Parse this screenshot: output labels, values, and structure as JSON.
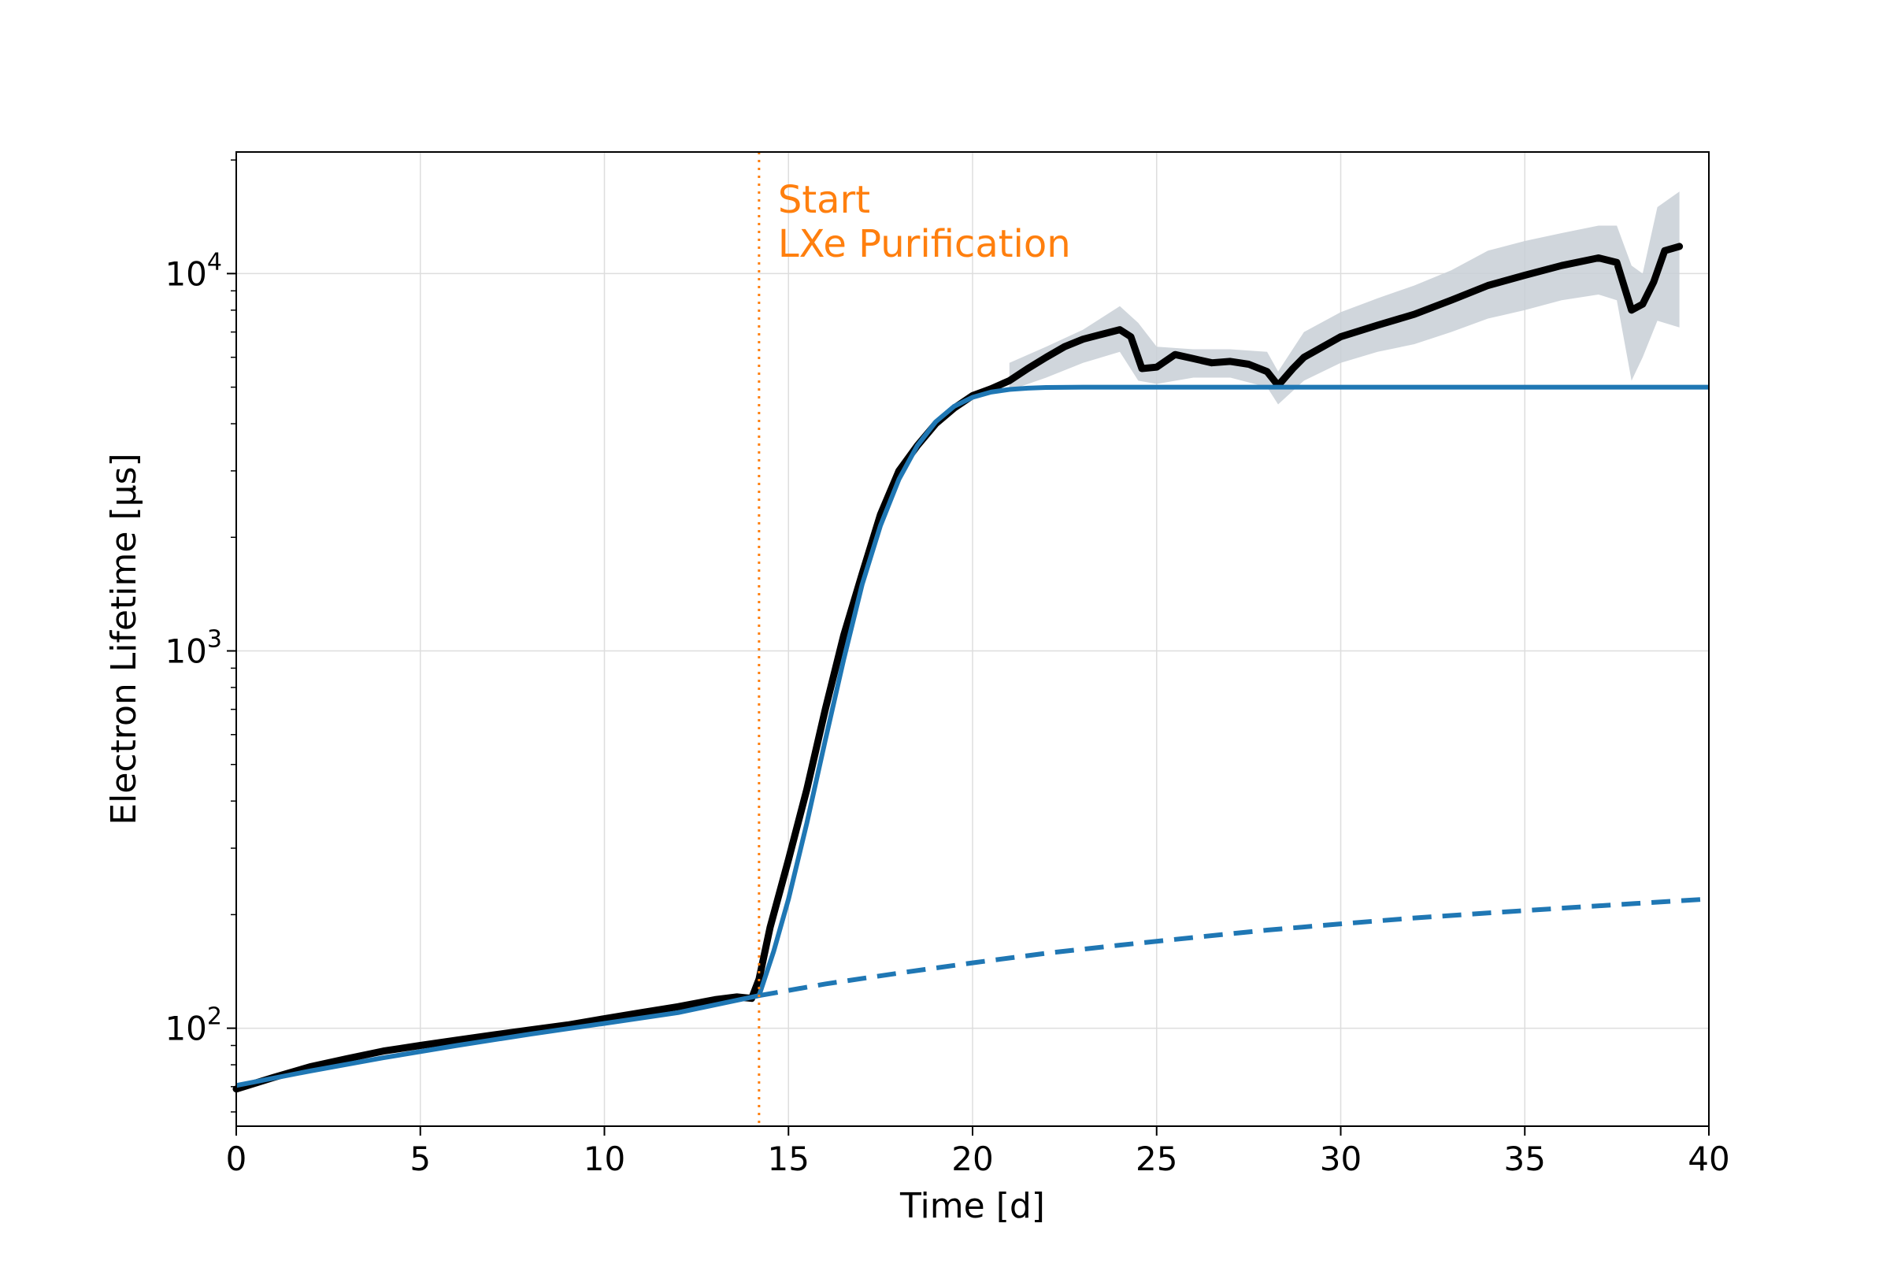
{
  "chart_data": {
    "type": "line",
    "title": "",
    "xlabel": "Time [d]",
    "ylabel": "Electron Lifetime [μs]",
    "yscale": "log",
    "xlim": [
      0,
      40
    ],
    "ylim": [
      55,
      21000
    ],
    "x_ticks": [
      0,
      5,
      10,
      15,
      20,
      25,
      30,
      35,
      40
    ],
    "y_ticks": [
      {
        "value": 100,
        "base": "10",
        "exp": "2"
      },
      {
        "value": 1000,
        "base": "10",
        "exp": "3"
      },
      {
        "value": 10000,
        "base": "10",
        "exp": "4"
      }
    ],
    "grid": true,
    "legend": "none",
    "colors": {
      "data": "#000000",
      "uncertainty_band": "#c8cfd6",
      "fit": "#1f77b4",
      "annotation": "#ff7f0e",
      "grid": "#dddddd"
    },
    "annotation": {
      "x": 14.2,
      "line1": "Start",
      "line2": "LXe Purification"
    },
    "series": [
      {
        "style": "points",
        "x": [
          0,
          1,
          2,
          3,
          4,
          5,
          6,
          7,
          8,
          9,
          10,
          11,
          12,
          13,
          13.6,
          14.0,
          14.2,
          14.5,
          15,
          15.5,
          16,
          16.5,
          17,
          17.5,
          18,
          18.5,
          19,
          19.5,
          20,
          20.5,
          21,
          21.5,
          22,
          22.5,
          23,
          23.5,
          24,
          24.3,
          24.6,
          25,
          25.5,
          26,
          26.5,
          27,
          27.5,
          28,
          28.3,
          28.7,
          29,
          30,
          31,
          32,
          33,
          34,
          35,
          36,
          37,
          37.5,
          37.9,
          38.2,
          38.5,
          38.8,
          39.2
        ],
        "y": [
          69,
          74,
          79,
          83,
          87,
          90,
          93,
          96,
          99,
          102,
          106,
          110,
          114,
          119,
          121,
          120,
          135,
          185,
          280,
          430,
          700,
          1100,
          1600,
          2300,
          3000,
          3500,
          4000,
          4400,
          4750,
          4950,
          5200,
          5600,
          6000,
          6400,
          6700,
          6900,
          7100,
          6800,
          5600,
          5650,
          6100,
          5950,
          5800,
          5850,
          5750,
          5500,
          5050,
          5600,
          6000,
          6800,
          7300,
          7800,
          8500,
          9300,
          9900,
          10500,
          11000,
          10700,
          8000,
          8300,
          9500,
          11500,
          11800
        ]
      },
      {
        "style": "band",
        "x": [
          21,
          22,
          23,
          24,
          24.5,
          25,
          26,
          27,
          28,
          28.3,
          29,
          30,
          31,
          32,
          33,
          34,
          35,
          36,
          37,
          37.5,
          37.9,
          38.2,
          38.6,
          39.2
        ],
        "lower": [
          4900,
          5300,
          5800,
          6200,
          5200,
          5100,
          5300,
          5300,
          5000,
          4500,
          5200,
          5800,
          6200,
          6500,
          7000,
          7600,
          8000,
          8500,
          8800,
          8500,
          5200,
          6000,
          7500,
          7200
        ],
        "upper": [
          5800,
          6400,
          7100,
          8200,
          7400,
          6400,
          6300,
          6300,
          6200,
          5500,
          7000,
          7900,
          8600,
          9300,
          10200,
          11500,
          12200,
          12800,
          13400,
          13400,
          10500,
          10000,
          15000,
          16500
        ]
      },
      {
        "style": "solid",
        "x": [
          0,
          2,
          4,
          6,
          8,
          10,
          12,
          14.2,
          14.6,
          15,
          15.5,
          16,
          16.5,
          17,
          17.5,
          18,
          18.5,
          19,
          19.5,
          20,
          20.5,
          21,
          21.5,
          22,
          23,
          24,
          26,
          30,
          35,
          40
        ],
        "y": [
          70.5,
          77,
          83.5,
          90,
          96.5,
          103,
          110,
          122,
          160,
          220,
          350,
          580,
          950,
          1500,
          2150,
          2850,
          3500,
          4050,
          4450,
          4700,
          4850,
          4930,
          4970,
          4990,
          5000,
          5000,
          5000,
          5000,
          5000,
          5000
        ]
      },
      {
        "style": "dashed",
        "x": [
          14.2,
          16,
          18,
          20,
          22,
          24,
          26,
          28,
          30,
          32,
          34,
          36,
          38,
          40
        ],
        "y": [
          122,
          131,
          140,
          149,
          158,
          166,
          174,
          182,
          189,
          196,
          202,
          208,
          214,
          220
        ]
      }
    ]
  }
}
